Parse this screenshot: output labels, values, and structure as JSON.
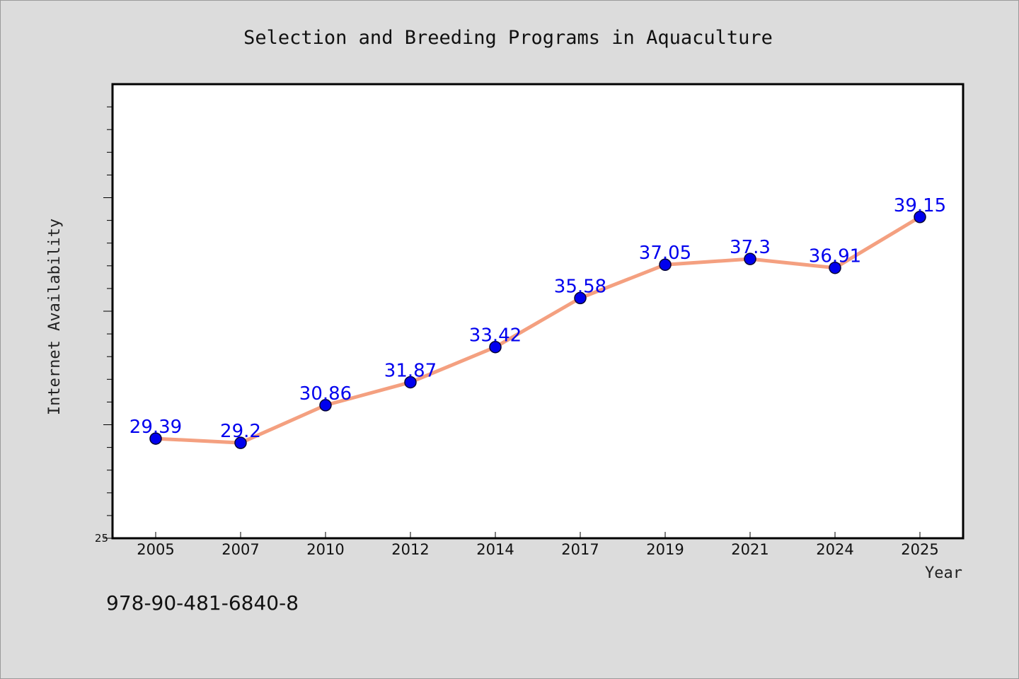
{
  "chart_data": {
    "type": "line",
    "title": "Selection and Breeding Programs in Aquaculture",
    "xlabel": "Year",
    "ylabel": "Internet Availability",
    "categories": [
      "2005",
      "2007",
      "2010",
      "2012",
      "2014",
      "2017",
      "2019",
      "2021",
      "2024",
      "2025"
    ],
    "series": [
      {
        "values": [
          29.39,
          29.2,
          30.86,
          31.87,
          33.42,
          35.58,
          37.05,
          37.3,
          36.91,
          39.15
        ],
        "labels": [
          "29.39",
          "29.2",
          "30.86",
          "31.87",
          "33.42",
          "35.58",
          "37.05",
          "37.3",
          "36.91",
          "39.15"
        ]
      }
    ],
    "ylim": [
      25,
      45
    ],
    "y_tick_labels": [
      "25"
    ],
    "grid": false,
    "colors": {
      "line": "#f4a080",
      "marker": "#0000ee",
      "marker_edge": "#000033",
      "label": "#0000ee"
    }
  },
  "footer": {
    "isbn": "978-90-481-6840-8"
  }
}
